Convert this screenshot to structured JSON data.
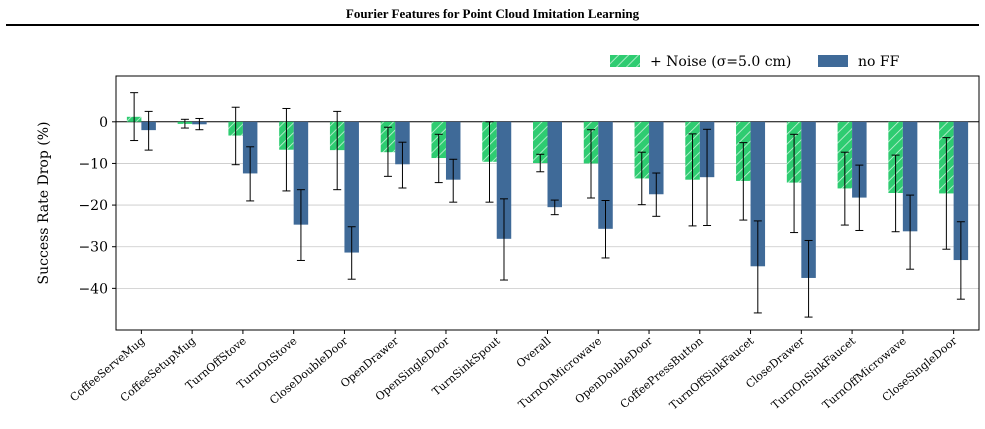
{
  "page": {
    "title": "Fourier Features for Point Cloud Imitation Learning"
  },
  "chart_data": {
    "type": "bar",
    "title": "",
    "xlabel": "",
    "ylabel": "Success Rate Drop (%)",
    "ylim": [
      -50,
      11
    ],
    "yticks": [
      0,
      -10,
      -20,
      -30,
      -40
    ],
    "grid": true,
    "legend_position": "top-right",
    "categories": [
      "CoffeeServeMug",
      "CoffeeSetupMug",
      "TurnOffStove",
      "TurnOnStove",
      "CloseDoubleDoor",
      "OpenDrawer",
      "OpenSingleDoor",
      "TurnSinkSpout",
      "Overall",
      "TurnOnMicrowave",
      "OpenDoubleDoor",
      "CoffeePressButton",
      "TurnOffSinkFaucet",
      "CloseDrawer",
      "TurnOnSinkFaucet",
      "TurnOffMicrowave",
      "CloseSingleDoor"
    ],
    "series": [
      {
        "name": "+ Noise (σ=5.0 cm)",
        "color": "#2ecc71",
        "hatch": true,
        "values": [
          1.2,
          -0.5,
          -3.3,
          -6.7,
          -6.8,
          -7.3,
          -8.7,
          -9.6,
          -9.9,
          -10.0,
          -13.6,
          -13.9,
          -14.2,
          -14.6,
          -16.0,
          -17.1,
          -17.2
        ],
        "err_low": [
          -4.5,
          -1.5,
          -10.3,
          -16.6,
          -16.3,
          -13.1,
          -14.6,
          -19.3,
          -12.0,
          -18.3,
          -19.9,
          -25.0,
          -23.6,
          -26.6,
          -24.8,
          -26.4,
          -30.6
        ],
        "err_high": [
          7.0,
          0.6,
          3.5,
          3.2,
          2.5,
          -1.3,
          -3.0,
          0.0,
          -7.8,
          -1.9,
          -7.3,
          -2.9,
          -5.0,
          -3.0,
          -7.3,
          -8.0,
          -3.8
        ]
      },
      {
        "name": "no FF",
        "color": "#3f6a98",
        "hatch": false,
        "values": [
          -2.0,
          -0.6,
          -12.4,
          -24.7,
          -31.4,
          -10.2,
          -13.9,
          -28.1,
          -20.5,
          -25.7,
          -17.4,
          -13.3,
          -34.7,
          -37.5,
          -18.2,
          -26.3,
          -33.2
        ],
        "err_low": [
          -6.8,
          -1.9,
          -19.0,
          -33.3,
          -37.8,
          -15.9,
          -19.3,
          -38.0,
          -22.3,
          -32.7,
          -22.7,
          -24.9,
          -45.9,
          -46.9,
          -26.1,
          -35.4,
          -42.6
        ],
        "err_high": [
          2.5,
          0.8,
          -6.0,
          -16.3,
          -25.2,
          -4.9,
          -9.0,
          -18.5,
          -18.8,
          -18.9,
          -12.3,
          -1.8,
          -23.8,
          -28.5,
          -10.4,
          -17.6,
          -24.0
        ]
      }
    ]
  }
}
